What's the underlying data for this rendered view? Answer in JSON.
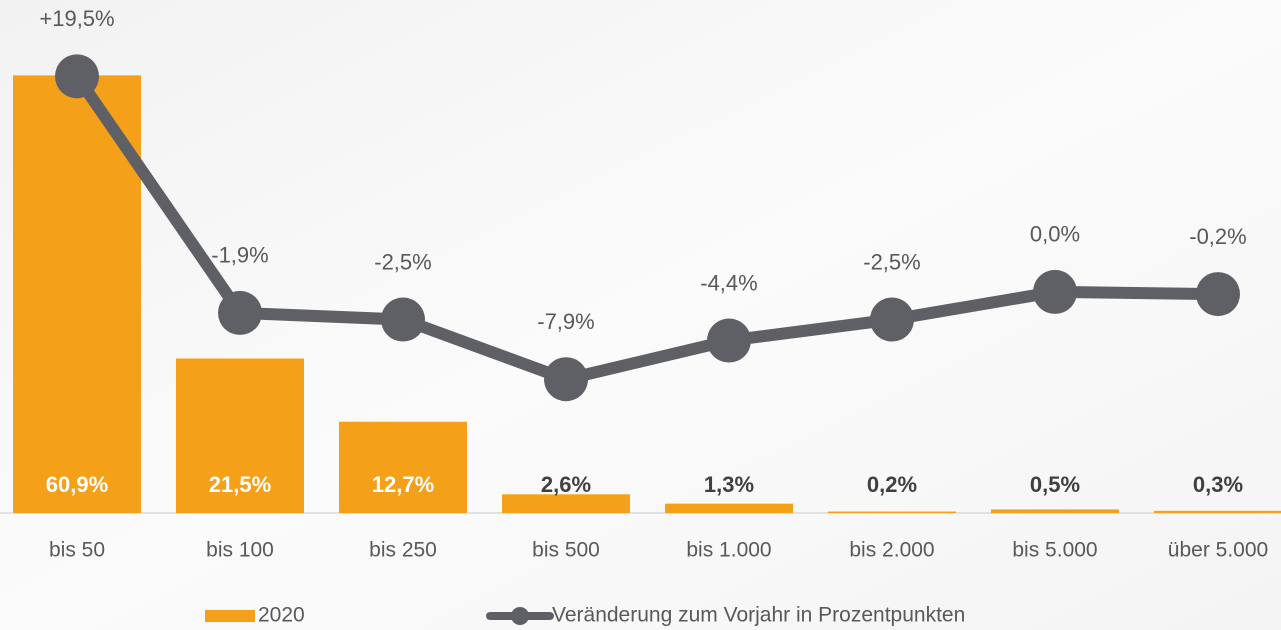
{
  "chart_data": {
    "type": "combo",
    "categories": [
      "bis 50",
      "bis 100",
      "bis 250",
      "bis 500",
      "bis 1.000",
      "bis 2.000",
      "bis 5.000",
      "über 5.000"
    ],
    "ylim": [
      0,
      70
    ],
    "y2lim": [
      -20,
      25.5
    ],
    "series": [
      {
        "name": "2020",
        "type": "bar",
        "color": "#f4a019",
        "values": [
          60.9,
          21.5,
          12.7,
          2.6,
          1.3,
          0.2,
          0.5,
          0.3
        ],
        "value_labels": [
          "60,9%",
          "21,5%",
          "12,7%",
          "2,6%",
          "1,3%",
          "0,2%",
          "0,5%",
          "0,3%"
        ]
      },
      {
        "name": "Veränderung zum Vorjahr in Prozentpunkten",
        "type": "line",
        "axis": "y2",
        "color": "#5f5f66",
        "values": [
          19.5,
          -1.9,
          -2.5,
          -7.9,
          -4.4,
          -2.5,
          0.0,
          -0.2
        ],
        "value_labels": [
          "+19,5%",
          "-1,9%",
          "-2,5%",
          "-7,9%",
          "-4,4%",
          "-2,5%",
          "0,0%",
          "-0,2%"
        ]
      }
    ]
  }
}
